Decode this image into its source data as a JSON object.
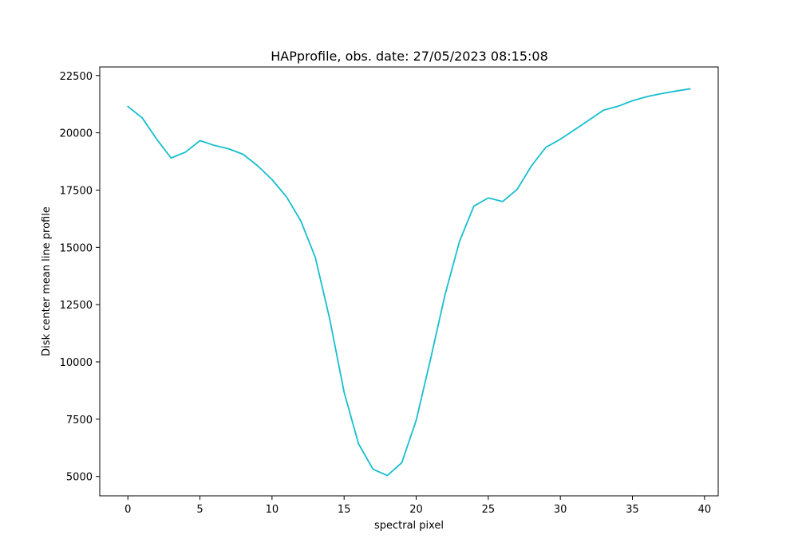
{
  "chart_data": {
    "type": "line",
    "title": "HAPprofile, obs. date: 27/05/2023 08:15:08",
    "xlabel": "spectral pixel",
    "ylabel": "Disk center mean line profile",
    "xlim": [
      -1.95,
      40.95
    ],
    "ylim": [
      4155,
      22875
    ],
    "x_ticks": [
      0,
      5,
      10,
      15,
      20,
      25,
      30,
      35,
      40
    ],
    "x_tick_labels": [
      "0",
      "5",
      "10",
      "15",
      "20",
      "25",
      "30",
      "35",
      "40"
    ],
    "y_ticks": [
      5000,
      7500,
      10000,
      12500,
      15000,
      17500,
      20000,
      22500
    ],
    "y_tick_labels": [
      "5000",
      "7500",
      "10000",
      "12500",
      "15000",
      "17500",
      "20000",
      "22500"
    ],
    "grid": false,
    "series": [
      {
        "color": "#17becf",
        "x": [
          0,
          1,
          2,
          3,
          4,
          5,
          6,
          7,
          8,
          9,
          10,
          11,
          12,
          13,
          14,
          15,
          16,
          17,
          18,
          19,
          20,
          21,
          22,
          23,
          24,
          25,
          26,
          27,
          28,
          29,
          30,
          31,
          32,
          33,
          34,
          35,
          36,
          37,
          38,
          39
        ],
        "values": [
          21150,
          20650,
          19720,
          18900,
          19160,
          19660,
          19450,
          19300,
          19060,
          18560,
          17960,
          17210,
          16150,
          14570,
          11880,
          8680,
          6430,
          5320,
          5040,
          5600,
          7450,
          10130,
          12930,
          15250,
          16800,
          17160,
          17000,
          17530,
          18560,
          19370,
          19720,
          20140,
          20560,
          20990,
          21160,
          21400,
          21580,
          21710,
          21820,
          21920
        ]
      }
    ]
  }
}
